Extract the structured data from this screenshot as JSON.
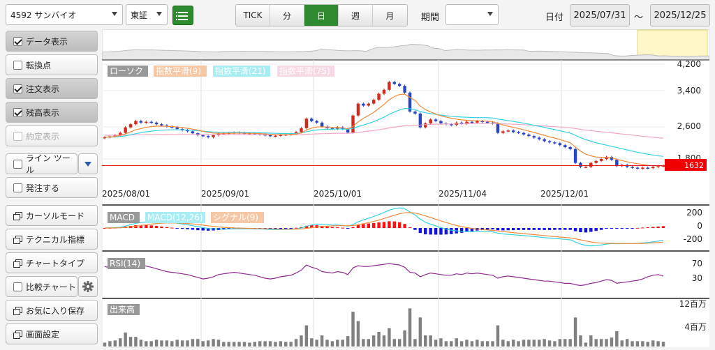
{
  "header": {
    "symbol": "4592 サンバイオ",
    "market": "東証",
    "periods": [
      "TICK",
      "分",
      "日",
      "週",
      "月"
    ],
    "active_period": "日",
    "period_label": "期間",
    "period_value": "",
    "date_label": "日付",
    "date_from": "2025/07/31",
    "date_sep": "～",
    "date_to": "2025/12/25"
  },
  "sidebar": {
    "data_display": "データ表示",
    "turning_point": "転換点",
    "order_display": "注文表示",
    "position_display": "残高表示",
    "execution_display": "約定表示",
    "line_tool": "ライン ツール",
    "place_order": "発注する",
    "cursor_mode": "カーソルモード",
    "technical_indicators": "テクニカル指標",
    "chart_type": "チャートタイプ",
    "compare_chart": "比較チャート",
    "save_favorite": "お気に入り保存",
    "screen_settings": "画面設定"
  },
  "colors": {
    "up": "#d42a1e",
    "down": "#2a45c4",
    "ema9": "#f08a3c",
    "ema21": "#36d0e6",
    "ema75": "#f3a7c4",
    "macd_line": "#36d0e6",
    "signal_line": "#f08a3c",
    "rsi": "#8e2a8e",
    "volume": "#808080",
    "price_line": "#e02020",
    "price_tag": "#f00000"
  },
  "chart_data": [
    {
      "type": "candlestick",
      "title": "",
      "legend": [
        "ローソク",
        "指数平滑(9)",
        "指数平滑(21)",
        "指数平滑(75)"
      ],
      "x_tick_labels": [
        "2025/08/01",
        "2025/09/01",
        "2025/10/01",
        "2025/11/04",
        "2025/12/01"
      ],
      "y_tick_labels": [
        "4,200",
        "3,400",
        "2,600",
        "1,800"
      ],
      "ylim": [
        1400,
        4300
      ],
      "current_price": 1632,
      "current_price_label": "1632",
      "close": [
        2350,
        2370,
        2400,
        2460,
        2600,
        2680,
        2760,
        2720,
        2740,
        2720,
        2680,
        2650,
        2620,
        2600,
        2560,
        2530,
        2500,
        2450,
        2400,
        2380,
        2350,
        2400,
        2440,
        2450,
        2460,
        2470,
        2460,
        2450,
        2450,
        2440,
        2420,
        2400,
        2380,
        2390,
        2410,
        2420,
        2430,
        2480,
        2580,
        2820,
        2760,
        2720,
        2620,
        2580,
        2560,
        2600,
        2560,
        2470,
        2900,
        3200,
        3150,
        3200,
        3300,
        3450,
        3550,
        3750,
        3700,
        3650,
        3480,
        3000,
        2950,
        2600,
        2700,
        2800,
        2760,
        2700,
        2680,
        2660,
        2720,
        2700,
        2740,
        2720,
        2760,
        2740,
        2720,
        2700,
        2460,
        2500,
        2520,
        2480,
        2460,
        2420,
        2380,
        2340,
        2300,
        2250,
        2220,
        2200,
        2150,
        2100,
        2050,
        1700,
        1600,
        1600,
        1700,
        1750,
        1800,
        1850,
        1780,
        1620,
        1650,
        1600,
        1580,
        1560,
        1580,
        1570,
        1600,
        1620,
        1632
      ],
      "open_close_direction_note": "",
      "ema9": [
        2350,
        2356,
        2371,
        2395,
        2435,
        2485,
        2540,
        2570,
        2600,
        2620,
        2630,
        2630,
        2628,
        2620,
        2608,
        2595,
        2575,
        2555,
        2530,
        2500,
        2475,
        2455,
        2450,
        2448,
        2450,
        2452,
        2454,
        2452,
        2450,
        2448,
        2442,
        2434,
        2424,
        2418,
        2416,
        2416,
        2418,
        2430,
        2460,
        2530,
        2580,
        2610,
        2615,
        2610,
        2600,
        2600,
        2590,
        2560,
        2630,
        2740,
        2830,
        2900,
        2980,
        3080,
        3180,
        3300,
        3380,
        3430,
        3440,
        3360,
        3280,
        3140,
        3050,
        2990,
        2940,
        2890,
        2860,
        2830,
        2810,
        2790,
        2780,
        2770,
        2765,
        2760,
        2755,
        2745,
        2700,
        2660,
        2630,
        2600,
        2570,
        2540,
        2505,
        2470,
        2435,
        2400,
        2360,
        2330,
        2290,
        2250,
        2210,
        2100,
        2000,
        1920,
        1880,
        1850,
        1840,
        1840,
        1830,
        1790,
        1760,
        1730,
        1700,
        1680,
        1660,
        1640,
        1630,
        1625,
        1628
      ],
      "ema21": [
        2350,
        2352,
        2358,
        2368,
        2385,
        2410,
        2440,
        2465,
        2488,
        2505,
        2518,
        2527,
        2534,
        2538,
        2540,
        2538,
        2533,
        2526,
        2516,
        2504,
        2490,
        2483,
        2479,
        2476,
        2474,
        2474,
        2472,
        2471,
        2470,
        2468,
        2464,
        2459,
        2453,
        2449,
        2446,
        2444,
        2443,
        2447,
        2460,
        2490,
        2516,
        2535,
        2544,
        2550,
        2553,
        2558,
        2559,
        2550,
        2576,
        2621,
        2660,
        2700,
        2745,
        2800,
        2860,
        2930,
        2990,
        3040,
        3080,
        3070,
        3050,
        3000,
        2970,
        2950,
        2930,
        2910,
        2895,
        2880,
        2870,
        2860,
        2855,
        2850,
        2848,
        2846,
        2843,
        2838,
        2810,
        2790,
        2770,
        2750,
        2728,
        2706,
        2680,
        2655,
        2628,
        2600,
        2570,
        2545,
        2515,
        2485,
        2455,
        2400,
        2340,
        2290,
        2250,
        2210,
        2180,
        2150,
        2120,
        2090,
        2060,
        2030,
        2000,
        1970,
        1945,
        1920,
        1900,
        1880,
        1865
      ],
      "ema75": [
        2400,
        2400,
        2401,
        2402,
        2404,
        2406,
        2409,
        2412,
        2414,
        2416,
        2418,
        2419,
        2420,
        2421,
        2422,
        2422,
        2422,
        2422,
        2421,
        2420,
        2419,
        2418,
        2418,
        2418,
        2418,
        2418,
        2418,
        2418,
        2418,
        2418,
        2418,
        2417,
        2416,
        2415,
        2415,
        2415,
        2415,
        2416,
        2418,
        2425,
        2430,
        2435,
        2440,
        2443,
        2446,
        2450,
        2452,
        2452,
        2460,
        2475,
        2490,
        2505,
        2520,
        2540,
        2560,
        2585,
        2605,
        2625,
        2640,
        2650,
        2655,
        2660,
        2668,
        2675,
        2680,
        2682,
        2684,
        2686,
        2688,
        2690,
        2692,
        2694,
        2696,
        2698,
        2700,
        2700,
        2695,
        2690,
        2686,
        2680,
        2674,
        2668,
        2660,
        2652,
        2644,
        2636,
        2626,
        2618,
        2608,
        2598,
        2588,
        2570,
        2550,
        2530,
        2515,
        2500,
        2488,
        2476,
        2462,
        2446,
        2432,
        2418,
        2404,
        2390,
        2376,
        2362,
        2350,
        2338,
        2326
      ]
    },
    {
      "type": "bar+line",
      "legend": [
        "MACD",
        "MACD(12,26)",
        "シグナル(9)"
      ],
      "y_tick_labels": [
        "200",
        "0",
        "-200"
      ],
      "ylim": [
        -330,
        330
      ]
    },
    {
      "type": "line",
      "legend": [
        "RSI(14)"
      ],
      "y_tick_labels": [
        "70",
        "30"
      ],
      "ylim": [
        0,
        100
      ],
      "values": [
        62,
        58,
        60,
        62,
        66,
        68,
        70,
        67,
        63,
        60,
        56,
        52,
        48,
        46,
        44,
        42,
        40,
        36,
        32,
        28,
        30,
        34,
        40,
        42,
        44,
        46,
        44,
        42,
        40,
        38,
        34,
        30,
        28,
        30,
        34,
        36,
        38,
        44,
        52,
        66,
        60,
        56,
        48,
        46,
        44,
        48,
        46,
        40,
        58,
        64,
        62,
        62,
        64,
        66,
        68,
        70,
        68,
        66,
        60,
        46,
        44,
        34,
        40,
        44,
        42,
        40,
        38,
        38,
        42,
        40,
        44,
        42,
        44,
        42,
        40,
        38,
        30,
        34,
        36,
        34,
        32,
        30,
        28,
        26,
        24,
        22,
        22,
        20,
        18,
        16,
        16,
        12,
        10,
        12,
        16,
        18,
        22,
        26,
        24,
        16,
        18,
        20,
        22,
        24,
        28,
        34,
        38,
        40,
        36
      ]
    },
    {
      "type": "bar",
      "legend": [
        "出来高"
      ],
      "y_tick_labels": [
        "12百万",
        "4百万"
      ],
      "ylim": [
        0,
        14
      ]
    }
  ]
}
